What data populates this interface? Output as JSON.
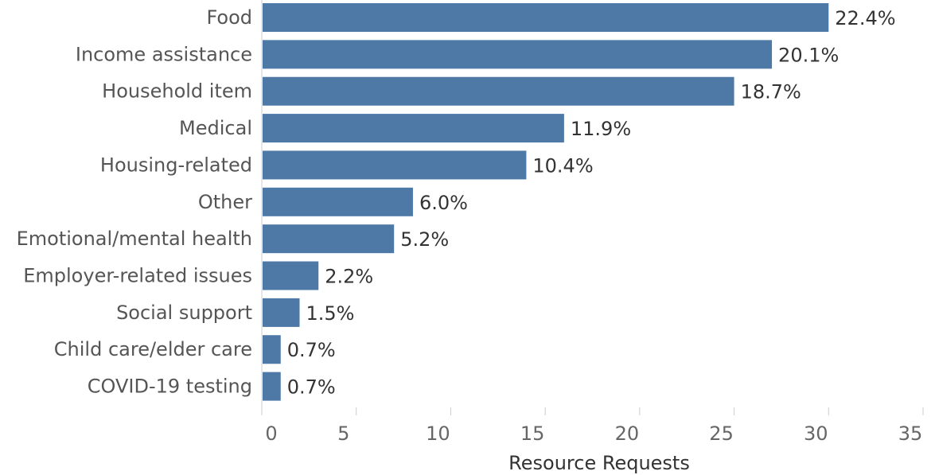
{
  "chart_data": {
    "type": "bar",
    "orientation": "horizontal",
    "title": "",
    "xlabel": "Resource Requests",
    "ylabel": "",
    "categories": [
      "Food",
      "Income assistance",
      "Household item",
      "Medical",
      "Housing-related",
      "Other",
      "Emotional/mental health",
      "Employer-related issues",
      "Social support",
      "Child care/elder care",
      "COVID-19 testing"
    ],
    "values": [
      30,
      27,
      25,
      16,
      14,
      8,
      7,
      3,
      2,
      1,
      1
    ],
    "data_labels": [
      "22.4%",
      "20.1%",
      "18.7%",
      "11.9%",
      "10.4%",
      "6.0%",
      "5.2%",
      "2.2%",
      "1.5%",
      "0.7%",
      "0.7%"
    ],
    "xlim": [
      0,
      35
    ],
    "xticks": [
      0,
      5,
      10,
      15,
      20,
      25,
      30,
      35
    ],
    "bar_color": "#4e79a7",
    "grid": false,
    "legend": "none"
  }
}
